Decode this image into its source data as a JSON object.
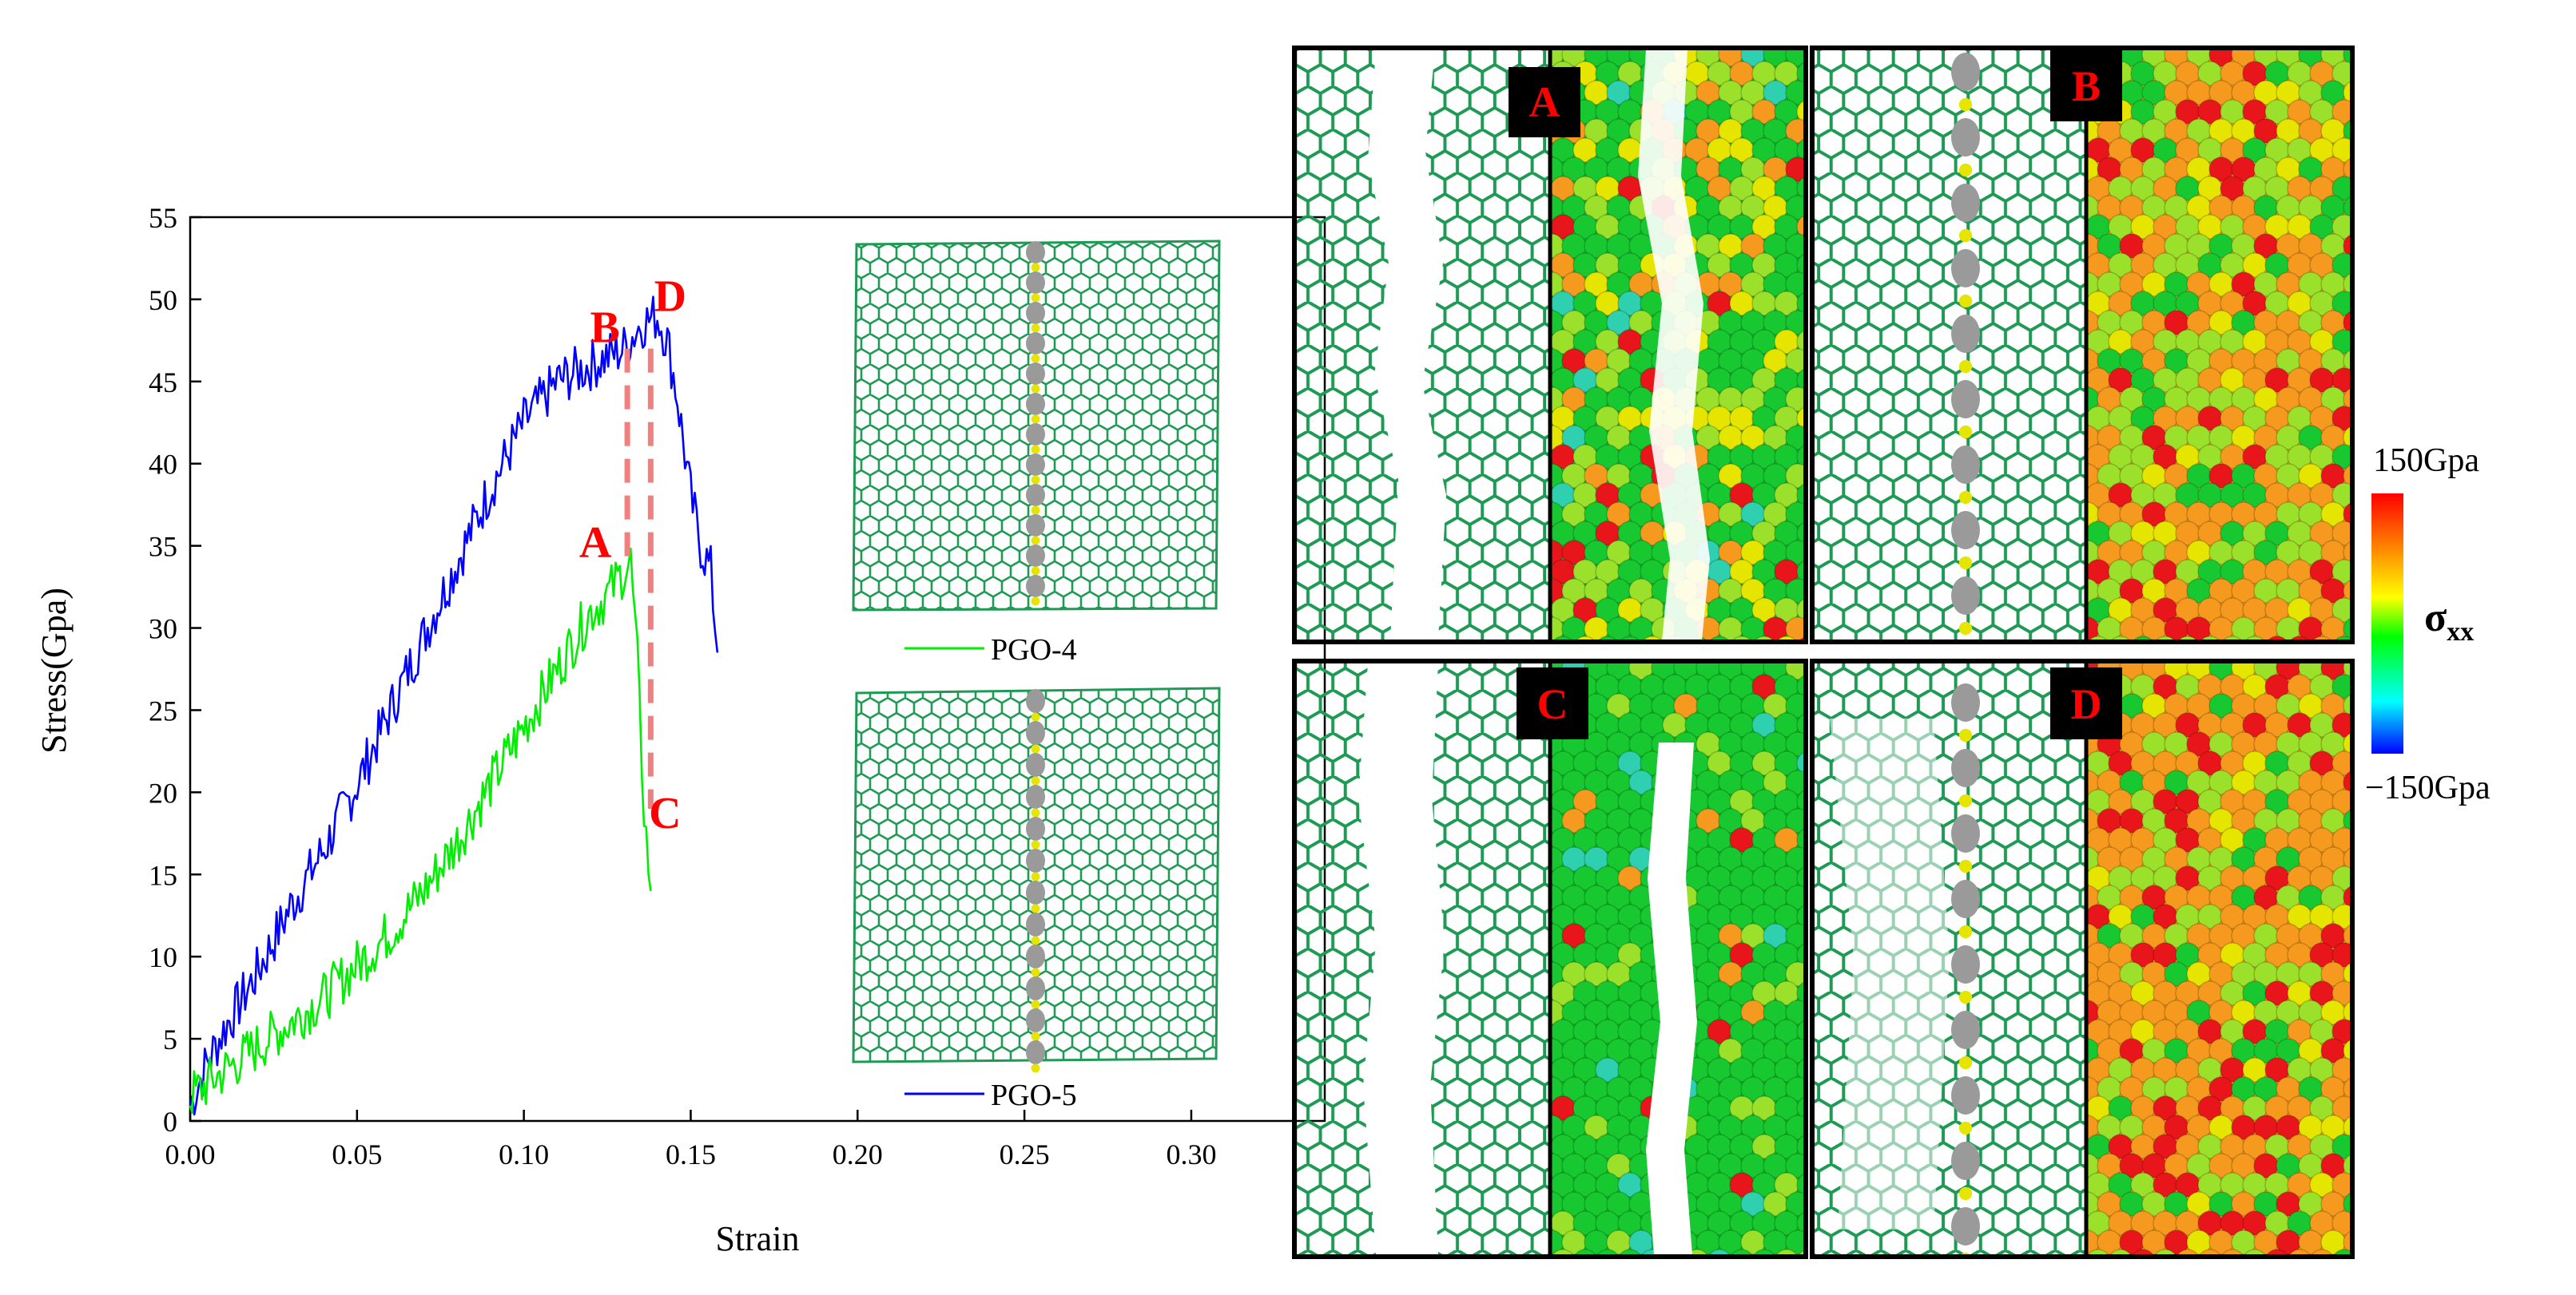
{
  "chart_data": {
    "type": "line",
    "xlabel": "Strain",
    "ylabel": "Stress(Gpa)",
    "xlim": [
      0,
      0.34
    ],
    "ylim": [
      0,
      55
    ],
    "x_ticks": [
      "0.00",
      "0.05",
      "0.10",
      "0.15",
      "0.20",
      "0.25",
      "0.30"
    ],
    "x_tick_values": [
      0,
      0.05,
      0.1,
      0.15,
      0.2,
      0.25,
      0.3
    ],
    "y_ticks": [
      "0",
      "5",
      "10",
      "15",
      "20",
      "25",
      "30",
      "35",
      "40",
      "45",
      "50",
      "55"
    ],
    "y_tick_values": [
      0,
      5,
      10,
      15,
      20,
      25,
      30,
      35,
      40,
      45,
      50,
      55
    ],
    "series": [
      {
        "name": "PGO-5",
        "color": "#0000ff",
        "x": [
          0,
          0.005,
          0.01,
          0.02,
          0.03,
          0.04,
          0.05,
          0.06,
          0.07,
          0.08,
          0.09,
          0.1,
          0.11,
          0.12,
          0.13,
          0.135,
          0.14,
          0.143,
          0.146,
          0.15,
          0.153,
          0.156,
          0.158
        ],
        "values": [
          1.0,
          3.5,
          5.5,
          9.0,
          13.0,
          16.5,
          20.5,
          25.0,
          29.5,
          34.0,
          38.5,
          42.5,
          45.0,
          46.0,
          47.0,
          48.5,
          49.0,
          47.5,
          44.0,
          38.0,
          35.0,
          33.5,
          28.5
        ]
      },
      {
        "name": "PGO-4",
        "color": "#00ee00",
        "x": [
          0,
          0.01,
          0.02,
          0.03,
          0.04,
          0.05,
          0.06,
          0.07,
          0.08,
          0.09,
          0.1,
          0.11,
          0.12,
          0.125,
          0.13,
          0.132,
          0.134,
          0.136,
          0.138
        ],
        "values": [
          1.5,
          3.0,
          4.5,
          6.0,
          7.5,
          9.5,
          11.5,
          14.0,
          17.0,
          20.5,
          24.0,
          27.5,
          31.0,
          32.0,
          33.5,
          34.0,
          28.0,
          19.0,
          14.0
        ]
      }
    ],
    "annotations": {
      "point_labels": [
        {
          "label": "A",
          "x": 0.131,
          "y": 34
        },
        {
          "label": "B",
          "x": 0.131,
          "y": 47
        },
        {
          "label": "C",
          "x": 0.138,
          "y": 19
        },
        {
          "label": "D",
          "x": 0.141,
          "y": 49
        }
      ],
      "dashed_lines": [
        {
          "x": 0.131,
          "y_from": 47,
          "y_to": 34
        },
        {
          "x": 0.138,
          "y_from": 47,
          "y_to": 19
        }
      ],
      "dash_color": "#f08080",
      "label_color": "#ff0000"
    },
    "legend": [
      {
        "name": "PGO-4",
        "color": "#00ee00"
      },
      {
        "name": "PGO-5",
        "color": "#0000ff"
      }
    ]
  },
  "panels": [
    {
      "label": "A"
    },
    {
      "label": "B"
    },
    {
      "label": "C"
    },
    {
      "label": "D"
    }
  ],
  "colorbar": {
    "max_label": "150Gpa",
    "min_label": "−150Gpa",
    "symbol": "σ",
    "subscript": "xx",
    "colors": [
      "#ff0000",
      "#ff8000",
      "#ffff00",
      "#00ff00",
      "#00ffff",
      "#0000ff"
    ]
  },
  "colors": {
    "lattice_green": "#1f9a55",
    "lattice_bg": "#ffffff",
    "atom_green": "#18c830",
    "atom_red": "#e8161a",
    "atom_orange": "#f59a1f",
    "atom_yellow": "#e5e500",
    "atom_lime": "#9be02a",
    "atom_cyan": "#2fd0b0",
    "pore_gray": "#9a9a9a",
    "defect_pink": "#e88a8a"
  }
}
